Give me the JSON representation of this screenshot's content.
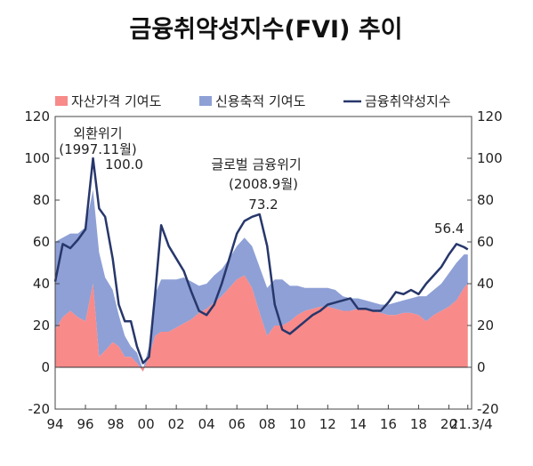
{
  "chart_data": {
    "type": "area",
    "title": "금융취약성지수(FVI) 추이",
    "legend": [
      {
        "name": "자산가격 기여도",
        "color": "#f88a8a",
        "kind": "area"
      },
      {
        "name": "신용축적 기여도",
        "color": "#8ea0d6",
        "kind": "area"
      },
      {
        "name": "금융취약성지수",
        "color": "#27376b",
        "kind": "line"
      }
    ],
    "legend_position": "top",
    "y_left_ticks": [
      "120",
      "100",
      "80",
      "60",
      "40",
      "20",
      "0",
      "-20"
    ],
    "y_right_ticks": [
      "120",
      "100",
      "80",
      "60",
      "40",
      "20",
      "0",
      "-20"
    ],
    "ylim": [
      -20,
      120
    ],
    "x_ticks": [
      "94",
      "96",
      "98",
      "00",
      "02",
      "04",
      "06",
      "08",
      "10",
      "12",
      "14",
      "16",
      "18",
      "20",
      "21.3/4"
    ],
    "xlim": [
      1994,
      2021.5
    ],
    "x": [
      1994.0,
      1994.5,
      1995.0,
      1995.5,
      1996.0,
      1996.5,
      1996.9,
      1997.3,
      1997.8,
      1998.2,
      1998.6,
      1999.0,
      1999.4,
      1999.8,
      2000.2,
      2000.6,
      2001.0,
      2001.5,
      2002.0,
      2002.5,
      2003.0,
      2003.5,
      2004.0,
      2004.5,
      2005.0,
      2005.5,
      2006.0,
      2006.5,
      2007.0,
      2007.5,
      2008.0,
      2008.5,
      2009.0,
      2009.5,
      2010.0,
      2010.5,
      2011.0,
      2011.5,
      2012.0,
      2012.5,
      2013.0,
      2013.5,
      2014.0,
      2014.5,
      2015.0,
      2015.5,
      2016.0,
      2016.5,
      2017.0,
      2017.5,
      2018.0,
      2018.5,
      2019.0,
      2019.5,
      2020.0,
      2020.5,
      2021.0,
      2021.25
    ],
    "series": [
      {
        "name": "자산가격 기여도",
        "values": [
          18,
          24,
          27,
          24,
          22,
          40,
          5,
          8,
          12,
          10,
          5,
          5,
          2,
          -2,
          5,
          15,
          17,
          17,
          19,
          21,
          23,
          26,
          28,
          31,
          34,
          38,
          42,
          44,
          38,
          26,
          15,
          20,
          20,
          22,
          25,
          27,
          28,
          29,
          29,
          28,
          27,
          27,
          28,
          28,
          27,
          26,
          25,
          25,
          26,
          26,
          25,
          22,
          25,
          27,
          29,
          32,
          38,
          40
        ]
      },
      {
        "name": "신용축적 기여도",
        "values": [
          42,
          38,
          37,
          40,
          45,
          45,
          50,
          35,
          25,
          15,
          10,
          5,
          5,
          1,
          5,
          20,
          25,
          25,
          23,
          22,
          18,
          13,
          12,
          13,
          13,
          14,
          16,
          18,
          20,
          22,
          23,
          22,
          22,
          17,
          14,
          11,
          10,
          9,
          9,
          9,
          7,
          6,
          5,
          4,
          4,
          4,
          5,
          6,
          6,
          7,
          9,
          12,
          12,
          13,
          16,
          18,
          16,
          14
        ]
      },
      {
        "name": "금융취약성지수",
        "values": [
          41,
          59,
          57,
          61,
          66,
          100,
          76,
          72,
          52,
          30,
          22,
          22,
          10,
          2,
          5,
          35,
          68,
          58,
          52,
          46,
          36,
          27,
          25,
          30,
          40,
          52,
          64,
          70,
          72,
          73.2,
          58,
          30,
          18,
          16,
          19,
          22,
          25,
          27,
          30,
          31,
          32,
          33,
          28,
          28,
          27,
          27,
          31,
          36,
          35,
          37,
          35,
          40,
          44,
          48,
          54,
          59,
          57.5,
          56.4
        ]
      }
    ],
    "annotations": [
      {
        "lines": [
          "외환위기",
          "(1997.11월)"
        ],
        "value_label": "100.0"
      },
      {
        "lines": [
          "글로벌 금융위기",
          "(2008.9월)"
        ],
        "value_label": "73.2"
      },
      {
        "lines": [],
        "value_label": "56.4"
      }
    ]
  }
}
